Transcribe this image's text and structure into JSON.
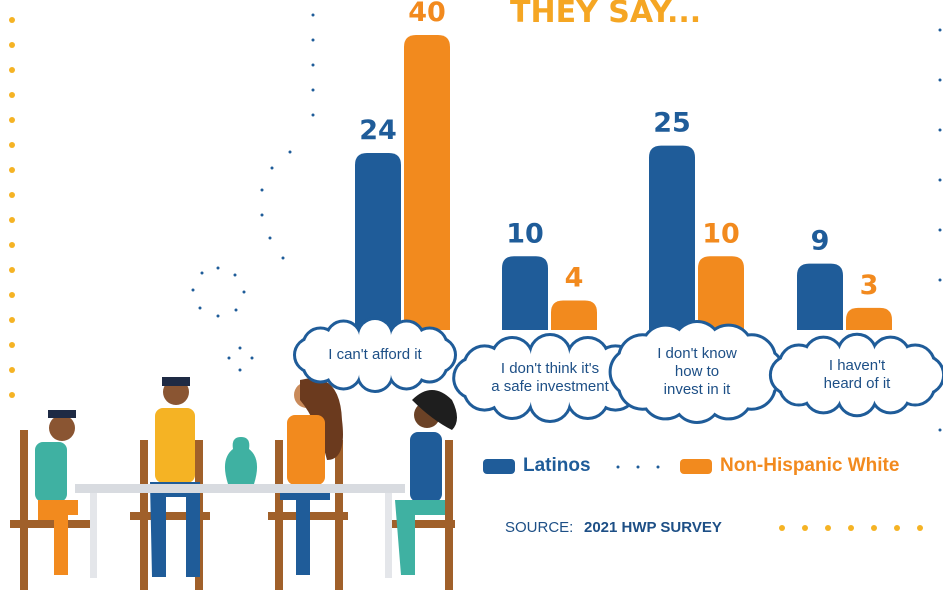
{
  "chart_data": {
    "type": "bar",
    "title": "THEY SAY...",
    "categories": [
      "I can't afford it",
      "I don't think it's\na safe investment",
      "I don't know\nhow to\ninvest in it",
      "I haven't\nheard of it"
    ],
    "series": [
      {
        "name": "Latinos",
        "color": "#1f5c99",
        "values": [
          24,
          10,
          25,
          9
        ]
      },
      {
        "name": "Non-Hispanic White",
        "color": "#f28a1e",
        "values": [
          40,
          4,
          10,
          3
        ]
      }
    ],
    "source_label": "SOURCE:",
    "source": "2021 HWP SURVEY"
  }
}
